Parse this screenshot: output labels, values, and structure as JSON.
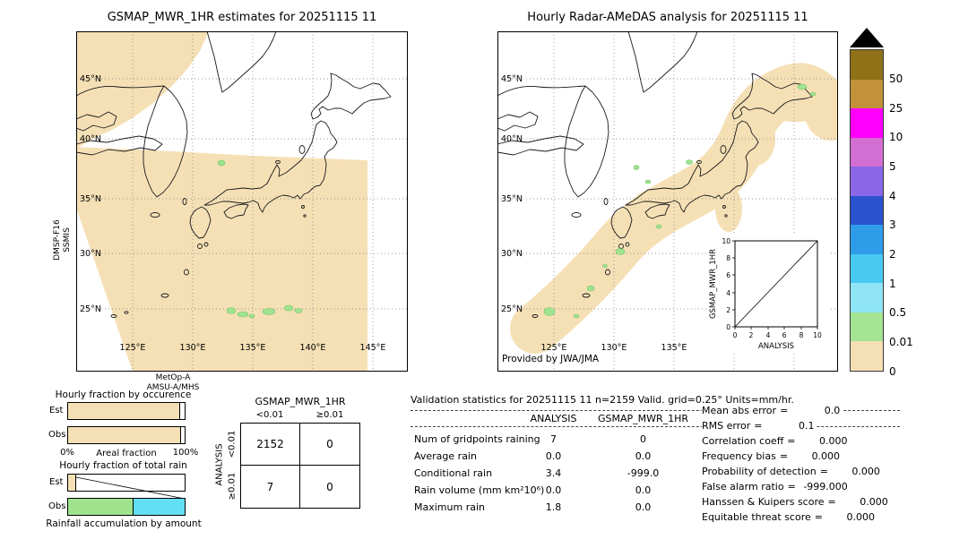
{
  "chart_data": [
    {
      "type": "table",
      "title": "GSMAP_MWR_1HR vs ANALYSIS contingency table (n=2159)",
      "columns": [
        "<0.01",
        "≥0.01"
      ],
      "rows": [
        "<0.01",
        "≥0.01"
      ],
      "values": [
        [
          2152,
          0
        ],
        [
          7,
          0
        ]
      ]
    },
    {
      "type": "bar",
      "title": "Hourly fraction by occurence",
      "categories": [
        "Est",
        "Obs"
      ],
      "values": [
        0.965,
        0.97
      ],
      "xlabel": "Areal fraction",
      "xlim": [
        0,
        1
      ]
    },
    {
      "type": "bar",
      "title": "Hourly fraction of total rain",
      "categories": [
        "Est",
        "Obs"
      ],
      "series": [
        {
          "name": "low-amount",
          "values": [
            0.07,
            0.56
          ]
        },
        {
          "name": "high-amount",
          "values": [
            0.0,
            0.44
          ]
        }
      ],
      "xlabel": "Rainfall accumulation by amount",
      "xlim": [
        0,
        1
      ]
    },
    {
      "type": "table",
      "title": "Validation statistics for 20251115 11",
      "columns": [
        "ANALYSIS",
        "GSMAP_MWR_1HR"
      ],
      "rows": [
        [
          "Num of gridpoints raining",
          7,
          0
        ],
        [
          "Average rain",
          0.0,
          0.0
        ],
        [
          "Conditional rain",
          3.4,
          -999.0
        ],
        [
          "Rain volume (mm km²10⁶)",
          0.0,
          0.0
        ],
        [
          "Maximum rain",
          1.8,
          0.0
        ]
      ]
    },
    {
      "type": "scatter",
      "title": "GSMAP_MWR_1HR vs ANALYSIS (inset)",
      "x": [],
      "y": [],
      "xlabel": "ANALYSIS",
      "ylabel": "GSMAP_MWR_1HR",
      "xlim": [
        0,
        10
      ],
      "ylim": [
        0,
        10
      ]
    }
  ],
  "left_panel": {
    "title": "GSMAP_MWR_1HR estimates for 20251115 11",
    "sensor_label_1": "DMSP-F16",
    "sensor_label_2": "SSMIS",
    "bottom_sensor_1": "MetOp-A",
    "bottom_sensor_2": "AMSU-A/MHS",
    "lat_labels": [
      "45°N",
      "40°N",
      "35°N",
      "30°N",
      "25°N"
    ],
    "lon_labels": [
      "125°E",
      "130°E",
      "135°E",
      "140°E",
      "145°E"
    ]
  },
  "right_panel": {
    "title": "Hourly Radar-AMeDAS analysis for 20251115 11",
    "credit": "Provided by JWA/JMA",
    "lat_labels": [
      "45°N",
      "40°N",
      "35°N",
      "30°N",
      "25°N"
    ],
    "lon_labels": [
      "125°E",
      "130°E",
      "135°E"
    ],
    "inset": {
      "ylabel": "GSMAP_MWR_1HR",
      "xlabel": "ANALYSIS",
      "x_ticks": [
        "0",
        "2",
        "4",
        "6",
        "8",
        "10"
      ],
      "y_ticks": [
        "0",
        "2",
        "4",
        "6",
        "8",
        "10"
      ]
    }
  },
  "colorbar": {
    "labels": [
      "50",
      "25",
      "10",
      "5",
      "4",
      "3",
      "2",
      "1",
      "0.5",
      "0.01",
      "0"
    ],
    "colors": [
      "#8f7118",
      "#c2913a",
      "#ff00ff",
      "#d36fd3",
      "#8a67e6",
      "#2a52cf",
      "#2f9ce9",
      "#47c9f1",
      "#8fe4f5",
      "#a4e593",
      "#f5e0b6"
    ]
  },
  "map_colors": {
    "swath": "#f5e0b6",
    "rain": "#9fe38f",
    "rainstroke": "#76c46c",
    "cyan": "#62dff2"
  },
  "occurrence_chart": {
    "title": "Hourly fraction by occurence",
    "row_labels": [
      "Est",
      "Obs"
    ],
    "x_min_label": "0%",
    "x_max_label": "100%",
    "x_axis_label": "Areal fraction",
    "est_fill": 0.965,
    "obs_fill": 0.97
  },
  "total_chart": {
    "title": "Hourly fraction of total rain",
    "row_labels": [
      "Est",
      "Obs"
    ],
    "footer": "Rainfall accumulation by amount",
    "est_fill": 0.07,
    "obs_segments": [
      0.56,
      0.44
    ]
  },
  "contingency": {
    "title": "GSMAP_MWR_1HR",
    "col_labels": [
      "<0.01",
      "≥0.01"
    ],
    "row_labels": [
      "<0.01",
      "≥0.01"
    ],
    "y_axis_label": "ANALYSIS",
    "cells": [
      [
        "2152",
        "0"
      ],
      [
        "7",
        "0"
      ]
    ]
  },
  "stats": {
    "title": "Validation statistics for 20251115 11  n=2159 Valid. grid=0.25° Units=mm/hr.",
    "col_headers": [
      "ANALYSIS",
      "GSMAP_MWR_1HR"
    ],
    "rows": [
      {
        "label": "Num of gridpoints raining",
        "analysis": "7",
        "gsmap": "0"
      },
      {
        "label": "Average rain",
        "analysis": "0.0",
        "gsmap": "0.0"
      },
      {
        "label": "Conditional rain",
        "analysis": "3.4",
        "gsmap": "-999.0"
      },
      {
        "label": "Rain volume (mm km²10⁶)",
        "analysis": "0.0",
        "gsmap": "0.0"
      },
      {
        "label": "Maximum rain",
        "analysis": "1.8",
        "gsmap": "0.0"
      }
    ],
    "metrics": [
      {
        "label": "Mean abs error",
        "value": "0.0"
      },
      {
        "label": "RMS error",
        "value": "0.1"
      },
      {
        "label": "Correlation coeff",
        "value": "0.000"
      },
      {
        "label": "Frequency bias",
        "value": "0.000"
      },
      {
        "label": "Probability of detection",
        "value": "0.000"
      },
      {
        "label": "False alarm ratio",
        "value": "-999.000"
      },
      {
        "label": "Hanssen & Kuipers score",
        "value": "0.000"
      },
      {
        "label": "Equitable threat score",
        "value": "0.000"
      }
    ]
  }
}
